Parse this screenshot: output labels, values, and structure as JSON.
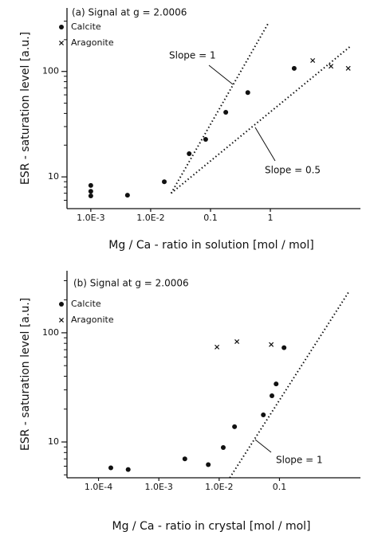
{
  "chart_data": [
    {
      "type": "scatter",
      "title": "(a) Signal at g = 2.0006",
      "x_label": "Mg / Ca - ratio in solution [mol / mol]",
      "y_label": "ESR - saturation level [a.u.]",
      "xlog": true,
      "ylog": true,
      "color": "#111111",
      "xlim": [
        0.0004,
        32
      ],
      "ylim": [
        5,
        400
      ],
      "xticks": [
        {
          "value": 0.001,
          "label": "1.0E-3"
        },
        {
          "value": 0.01,
          "label": "1.0E-2"
        },
        0.1,
        1
      ],
      "yticks": [
        10,
        100
      ],
      "yminorticks": [
        6,
        7,
        8,
        9,
        20,
        30,
        40,
        50,
        60,
        70,
        80,
        90,
        200,
        300
      ],
      "series": [
        {
          "name": "Calcite",
          "marker": "dot",
          "x": [
            0.001,
            0.001,
            0.001,
            0.0041,
            0.0169,
            0.044,
            0.083,
            0.18,
            0.42,
            2.5
          ],
          "values": [
            8.3,
            7.3,
            6.6,
            6.7,
            9,
            16.6,
            22.7,
            41,
            63,
            107
          ]
        },
        {
          "name": "Aragonite",
          "marker": "cross",
          "x": [
            5.1,
            10.3,
            20
          ],
          "values": [
            127,
            112,
            107
          ]
        }
      ],
      "fit_lines": [
        {
          "label": "Slope = 1",
          "x": [
            0.022,
            0.94
          ],
          "y": [
            7.0,
            292
          ]
        },
        {
          "label": "Slope = 0.5",
          "x": [
            0.022,
            22
          ],
          "y": [
            7.0,
            174
          ]
        }
      ]
    },
    {
      "type": "scatter",
      "title": "(b) Signal at g = 2.0006",
      "x_label": "Mg / Ca - ratio in crystal [mol / mol]",
      "y_label": "ESR - saturation level [a.u.]",
      "xlog": true,
      "ylog": true,
      "color": "#111111",
      "xlim": [
        3e-05,
        2.2
      ],
      "ylim": [
        4.7,
        370
      ],
      "xticks": [
        {
          "value": 0.0001,
          "label": "1.0E-4"
        },
        {
          "value": 0.001,
          "label": "1.0E-3"
        },
        {
          "value": 0.01,
          "label": "1.0E-2"
        },
        0.1
      ],
      "yticks": [
        10,
        100
      ],
      "yminorticks": [
        5,
        6,
        7,
        8,
        9,
        20,
        30,
        40,
        50,
        60,
        70,
        80,
        90,
        200,
        300
      ],
      "series": [
        {
          "name": "Calcite",
          "marker": "dot",
          "x": [
            0.00016,
            0.00031,
            0.0027,
            0.0066,
            0.0117,
            0.018,
            0.054,
            0.075,
            0.088,
            0.119
          ],
          "values": [
            5.8,
            5.6,
            7,
            6.2,
            8.9,
            13.8,
            17.7,
            26.5,
            34,
            73
          ]
        },
        {
          "name": "Aragonite",
          "marker": "cross",
          "x": [
            0.0092,
            0.0197,
            0.073
          ],
          "values": [
            74,
            83,
            78
          ]
        }
      ],
      "fit_lines": [
        {
          "label": "Slope = 1",
          "x": [
            0.015,
            1.45
          ],
          "y": [
            4.7,
            243
          ]
        }
      ]
    }
  ]
}
